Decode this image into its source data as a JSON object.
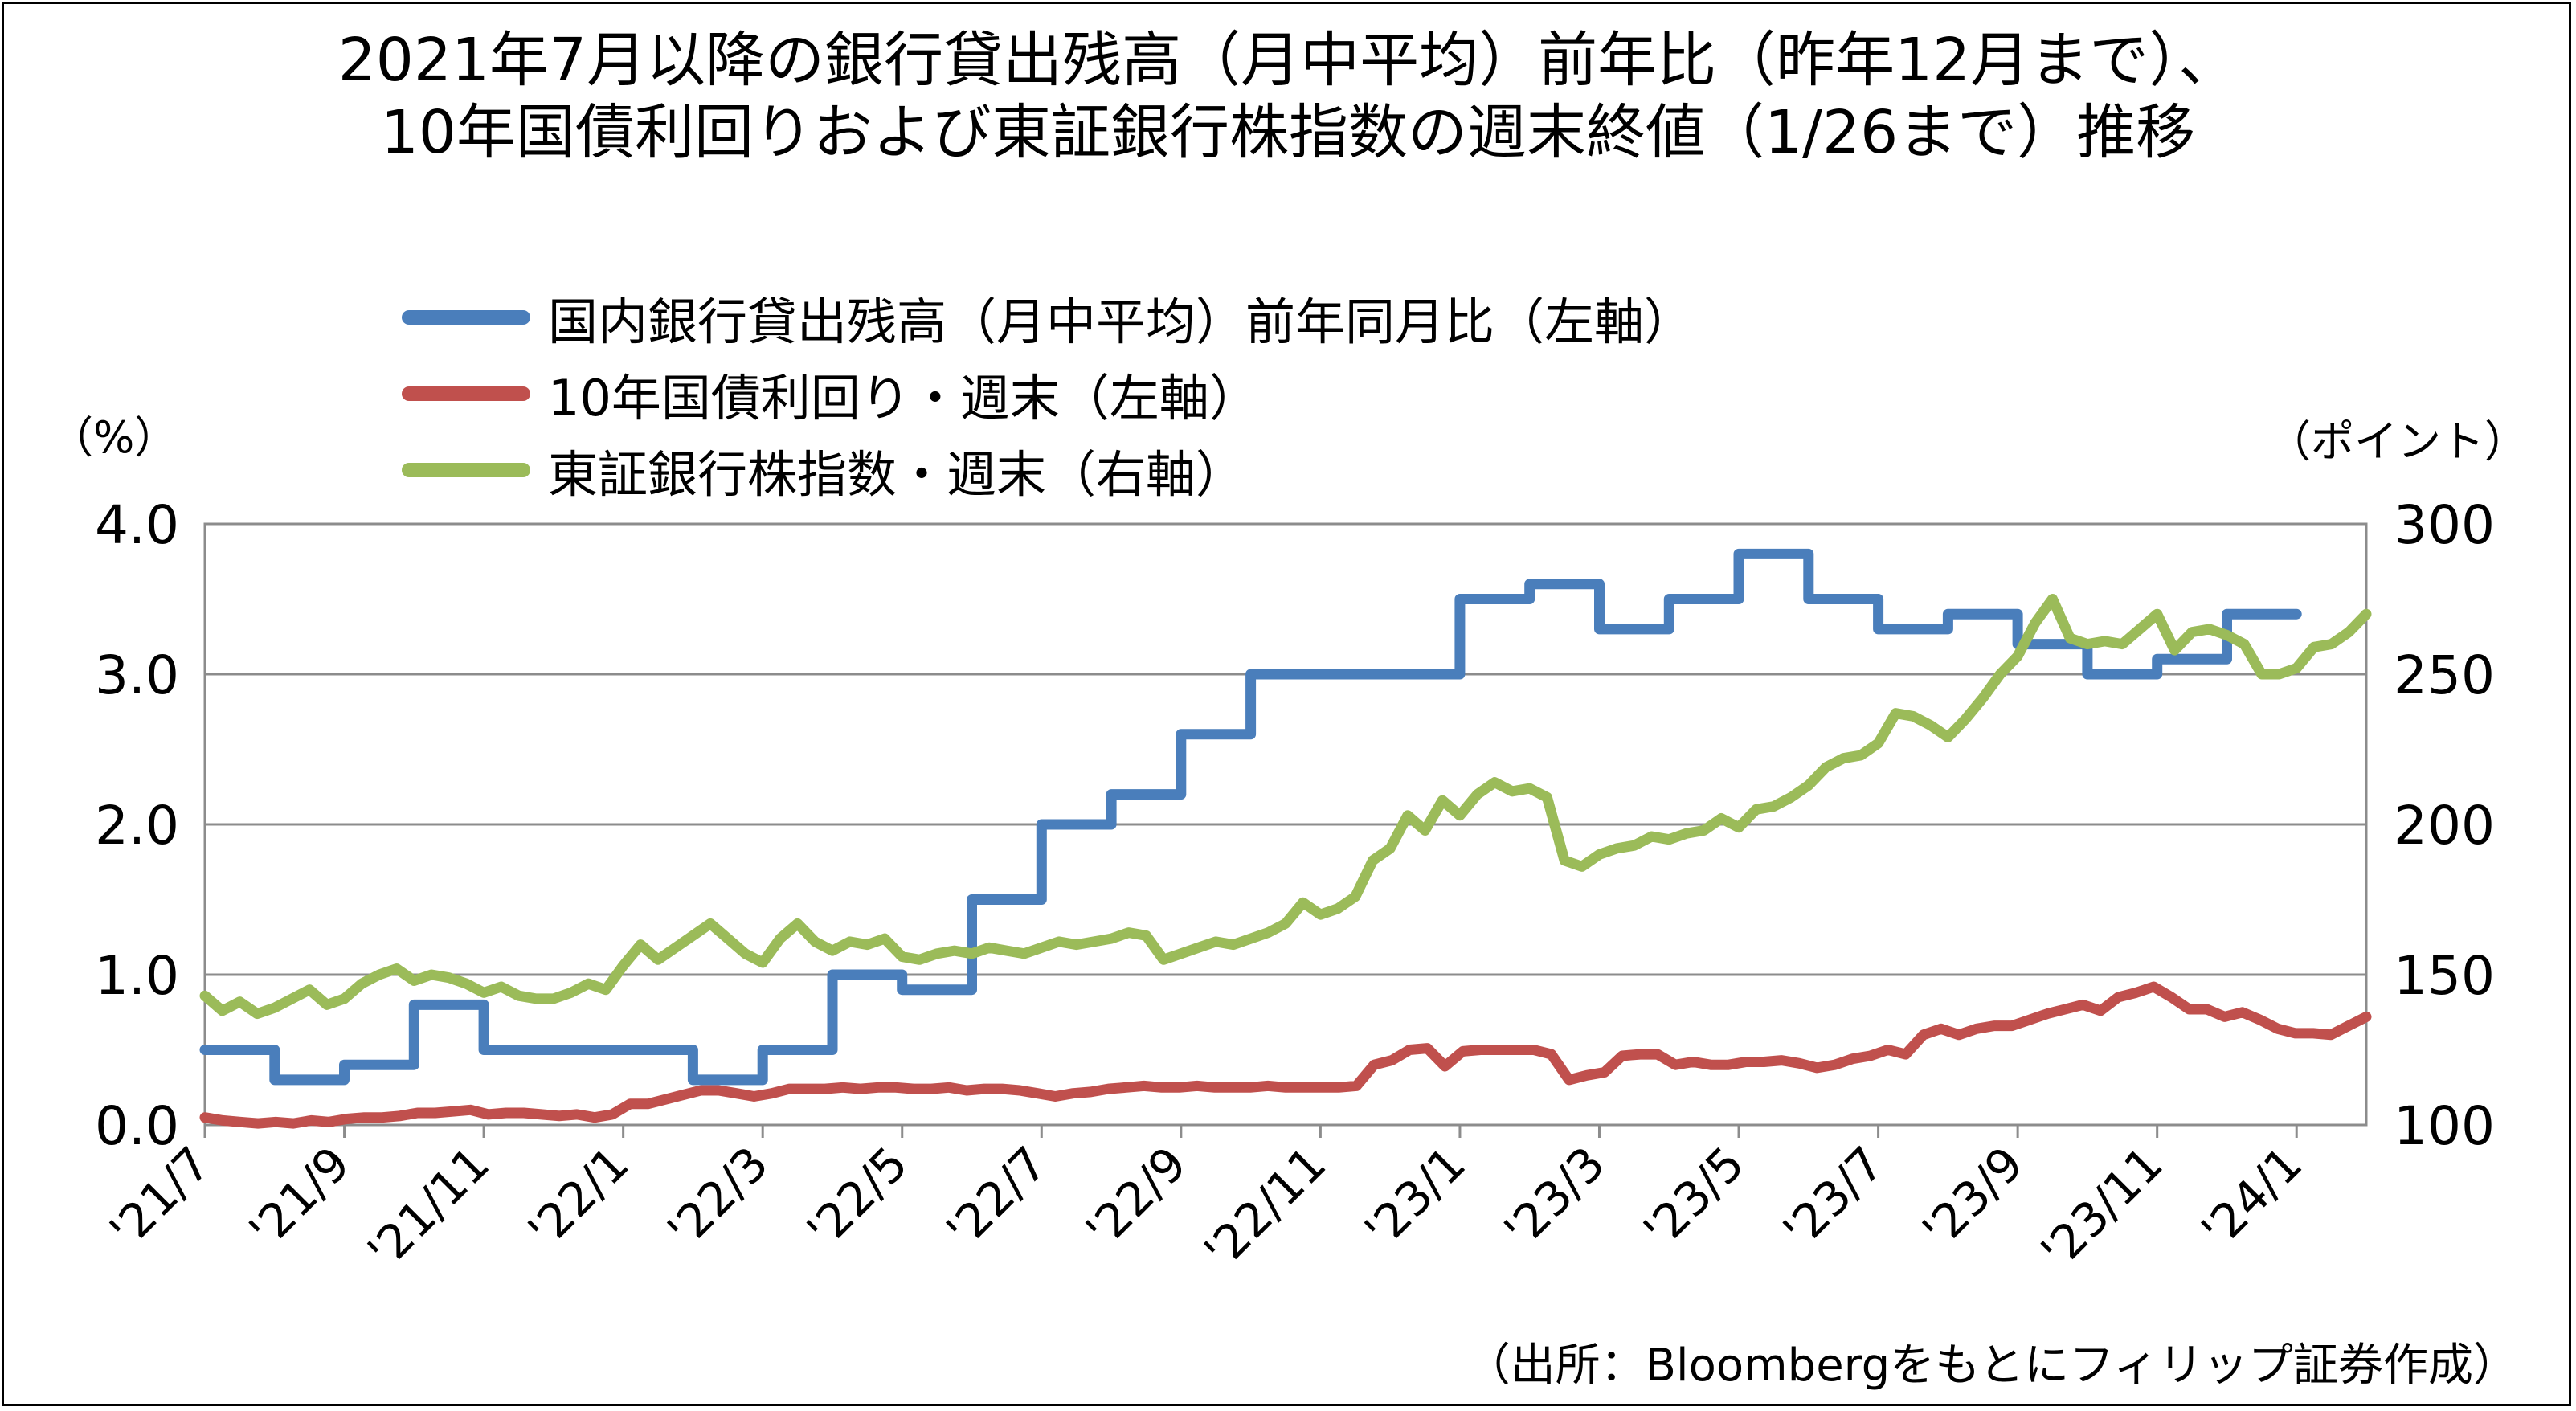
{
  "chart_data": {
    "type": "line",
    "title": "2021年7月以降の銀行貸出残高（月中平均）前年比（昨年12月まで）、",
    "subtitle": "10年国債利回りおよび東証銀行株指数の週末終値（1/26まで）推移",
    "left_axis": {
      "unit_label": "（%）",
      "range": [
        0.0,
        4.0
      ],
      "ticks": [
        "0.0",
        "1.0",
        "2.0",
        "3.0",
        "4.0"
      ]
    },
    "right_axis": {
      "unit_label": "（ポイント）",
      "range": [
        100,
        300
      ],
      "ticks": [
        "100",
        "150",
        "200",
        "250",
        "300"
      ]
    },
    "x_ticks": [
      "'21/7",
      "'21/9",
      "'21/11",
      "'22/1",
      "'22/3",
      "'22/5",
      "'22/7",
      "'22/9",
      "'22/11",
      "'23/1",
      "'23/3",
      "'23/5",
      "'23/7",
      "'23/9",
      "'23/11",
      "'24/1"
    ],
    "x_range_months": [
      0,
      31
    ],
    "grid": true,
    "legend_position": "top-left",
    "source": "（出所：Bloombergをもとにフィリップ証券作成）",
    "series": [
      {
        "name": "国内銀行貸出残高（月中平均）前年同月比（左軸）",
        "axis": "left",
        "color": "#4a7ebb",
        "step": true,
        "values": [
          0.5,
          0.3,
          0.4,
          0.8,
          0.5,
          0.5,
          0.5,
          0.3,
          0.5,
          1.0,
          0.9,
          1.5,
          2.0,
          2.2,
          2.6,
          3.0,
          3.0,
          3.0,
          3.5,
          3.6,
          3.3,
          3.5,
          3.8,
          3.5,
          3.3,
          3.4,
          3.2,
          3.0,
          3.1,
          3.4
        ]
      },
      {
        "name": "10年国債利回り・週末（左軸）",
        "axis": "left",
        "color": "#c0504d",
        "values": [
          0.05,
          0.03,
          0.02,
          0.01,
          0.02,
          0.01,
          0.03,
          0.02,
          0.04,
          0.05,
          0.05,
          0.06,
          0.08,
          0.08,
          0.09,
          0.1,
          0.07,
          0.08,
          0.08,
          0.07,
          0.06,
          0.07,
          0.05,
          0.07,
          0.14,
          0.14,
          0.17,
          0.2,
          0.23,
          0.23,
          0.21,
          0.19,
          0.21,
          0.24,
          0.24,
          0.24,
          0.25,
          0.24,
          0.25,
          0.25,
          0.24,
          0.24,
          0.25,
          0.23,
          0.24,
          0.24,
          0.23,
          0.21,
          0.19,
          0.21,
          0.22,
          0.24,
          0.25,
          0.26,
          0.25,
          0.25,
          0.26,
          0.25,
          0.25,
          0.25,
          0.26,
          0.25,
          0.25,
          0.25,
          0.25,
          0.26,
          0.4,
          0.43,
          0.5,
          0.51,
          0.39,
          0.49,
          0.5,
          0.5,
          0.5,
          0.5,
          0.47,
          0.3,
          0.33,
          0.35,
          0.46,
          0.47,
          0.47,
          0.4,
          0.42,
          0.4,
          0.4,
          0.42,
          0.42,
          0.43,
          0.41,
          0.38,
          0.4,
          0.44,
          0.46,
          0.5,
          0.47,
          0.6,
          0.64,
          0.6,
          0.64,
          0.66,
          0.66,
          0.7,
          0.74,
          0.77,
          0.8,
          0.76,
          0.85,
          0.88,
          0.92,
          0.85,
          0.77,
          0.77,
          0.72,
          0.75,
          0.7,
          0.64,
          0.61,
          0.61,
          0.6,
          0.66,
          0.72
        ]
      },
      {
        "name": "東証銀行株指数・週末（右軸）",
        "axis": "right",
        "color": "#9bbb59",
        "values": [
          143,
          138,
          141,
          137,
          139,
          142,
          145,
          140,
          142,
          147,
          150,
          152,
          148,
          150,
          149,
          147,
          144,
          146,
          143,
          142,
          142,
          144,
          147,
          145,
          153,
          160,
          155,
          159,
          163,
          167,
          162,
          157,
          154,
          162,
          167,
          161,
          158,
          161,
          160,
          162,
          156,
          155,
          157,
          158,
          157,
          159,
          158,
          157,
          159,
          161,
          160,
          161,
          162,
          164,
          163,
          155,
          157,
          159,
          161,
          160,
          162,
          164,
          167,
          174,
          170,
          172,
          176,
          188,
          192,
          203,
          198,
          208,
          203,
          210,
          214,
          211,
          212,
          209,
          188,
          186,
          190,
          192,
          193,
          196,
          195,
          197,
          198,
          202,
          199,
          205,
          206,
          209,
          213,
          219,
          222,
          223,
          227,
          237,
          236,
          233,
          229,
          235,
          242,
          250,
          256,
          267,
          275,
          262,
          260,
          261,
          260,
          265,
          270,
          258,
          264,
          265,
          263,
          260,
          250,
          250,
          252,
          259,
          260,
          264,
          270
        ]
      }
    ]
  }
}
